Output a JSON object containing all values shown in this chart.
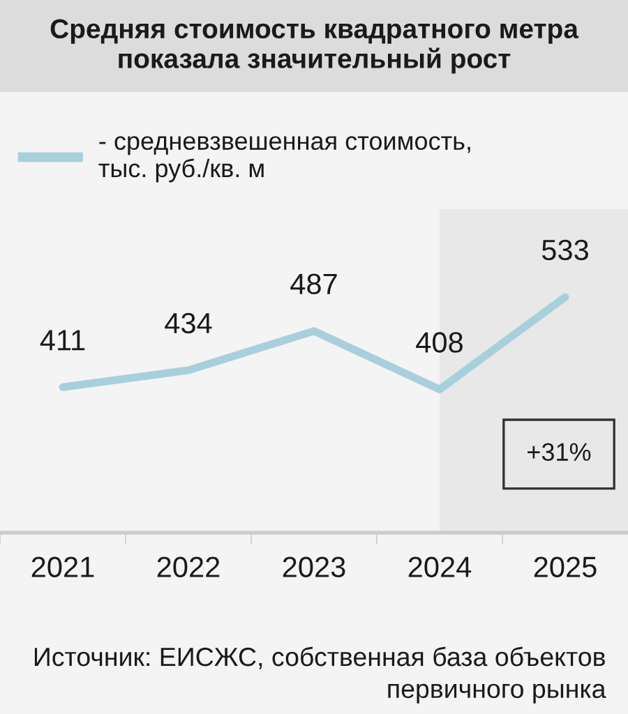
{
  "chart_data": {
    "type": "line",
    "title": "Средняя стоимость квадратного метра\nпоказала значительный рост",
    "categories": [
      "2021",
      "2022",
      "2023",
      "2024",
      "2025"
    ],
    "series": [
      {
        "name": "- средневзвешенная стоимость,\nтыс. руб./кв. м",
        "color": "#a8d0dc",
        "values": [
          411,
          434,
          487,
          408,
          533
        ]
      }
    ],
    "data_labels": true,
    "legend": "top left",
    "grid": false,
    "marker": "none",
    "line_style": "solid",
    "bands": [
      {
        "axis": "x",
        "from": "2024",
        "to": "2025",
        "color": "#e8e8e8"
      }
    ],
    "annotations": [
      "+31%",
      "Источник: ЕИСЖС, собственная база объектов\nпервичного рынка"
    ]
  }
}
